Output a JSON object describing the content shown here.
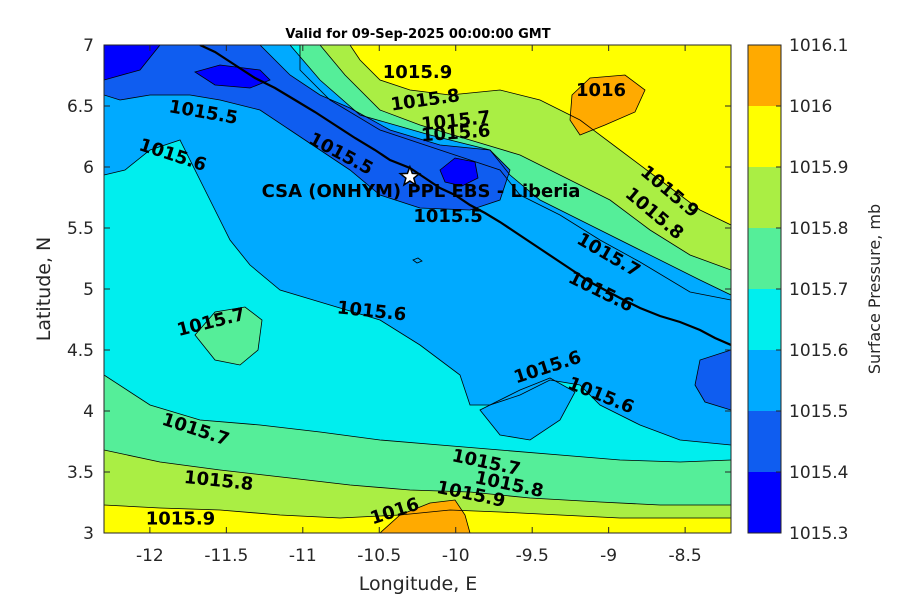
{
  "chart_data": {
    "type": "heatmap",
    "subtype": "filled-contour",
    "title": "Valid for 09-Sep-2025 00:00:00 GMT",
    "xlabel": "Longitude, E",
    "ylabel": "Latitude, N",
    "xlim": [
      -12.3,
      -8.2
    ],
    "ylim": [
      3,
      7
    ],
    "xticks": [
      "-12",
      "-11.5",
      "-11",
      "-10.5",
      "-10",
      "-9.5",
      "-9",
      "-8.5"
    ],
    "xtick_values": [
      -12,
      -11.5,
      -11,
      -10.5,
      -10,
      -9.5,
      -9,
      -8.5
    ],
    "yticks": [
      "3",
      "3.5",
      "4",
      "4.5",
      "5",
      "5.5",
      "6",
      "6.5",
      "7"
    ],
    "ytick_values": [
      3,
      3.5,
      4,
      4.5,
      5,
      5.5,
      6,
      6.5,
      7
    ],
    "colorbar": {
      "label": "Surface Pressure, mb",
      "levels": [
        1015.3,
        1015.4,
        1015.5,
        1015.6,
        1015.7,
        1015.8,
        1015.9,
        1016,
        1016.1
      ],
      "tick_labels": [
        "1015.3",
        "1015.4",
        "1015.5",
        "1015.6",
        "1015.7",
        "1015.8",
        "1015.9",
        "1016",
        "1016.1"
      ],
      "colors": [
        "#0000ff",
        "#0f5df0",
        "#00aaff",
        "#00eeee",
        "#55ee99",
        "#aaee44",
        "#ffff00",
        "#ffaa00",
        "#ff5500"
      ]
    },
    "contour_labels": [
      {
        "text": "1015.9",
        "lon": -10.25,
        "lat": 6.78,
        "angle": 0
      },
      {
        "text": "1016",
        "lon": -9.05,
        "lat": 6.63,
        "angle": 0
      },
      {
        "text": "1015.8",
        "lon": -10.2,
        "lat": 6.55,
        "angle": -8
      },
      {
        "text": "1015.7",
        "lon": -10.0,
        "lat": 6.38,
        "angle": -6
      },
      {
        "text": "1015.6",
        "lon": -10.0,
        "lat": 6.28,
        "angle": -4
      },
      {
        "text": "1015.5",
        "lon": -11.65,
        "lat": 6.45,
        "angle": 10
      },
      {
        "text": "1015.5",
        "lon": -10.75,
        "lat": 6.11,
        "angle": 28
      },
      {
        "text": "1015.6",
        "lon": -11.85,
        "lat": 6.1,
        "angle": 18
      },
      {
        "text": "1015.5",
        "lon": -10.05,
        "lat": 5.6,
        "angle": 0
      },
      {
        "text": "1015.9",
        "lon": -8.6,
        "lat": 5.8,
        "angle": 40
      },
      {
        "text": "1015.8",
        "lon": -8.7,
        "lat": 5.62,
        "angle": 40
      },
      {
        "text": "1015.7",
        "lon": -9.0,
        "lat": 5.28,
        "angle": 30
      },
      {
        "text": "1015.6",
        "lon": -9.05,
        "lat": 4.98,
        "angle": 26
      },
      {
        "text": "1015.6",
        "lon": -10.55,
        "lat": 4.82,
        "angle": 6
      },
      {
        "text": "1015.7",
        "lon": -11.6,
        "lat": 4.73,
        "angle": -14
      },
      {
        "text": "1015.6",
        "lon": -9.4,
        "lat": 4.36,
        "angle": -18
      },
      {
        "text": "1015.6",
        "lon": -9.05,
        "lat": 4.13,
        "angle": 22
      },
      {
        "text": "1015.7",
        "lon": -11.7,
        "lat": 3.85,
        "angle": 18
      },
      {
        "text": "1015.7",
        "lon": -9.8,
        "lat": 3.58,
        "angle": 12
      },
      {
        "text": "1015.8",
        "lon": -9.65,
        "lat": 3.4,
        "angle": 12
      },
      {
        "text": "1015.9",
        "lon": -9.9,
        "lat": 3.32,
        "angle": 12
      },
      {
        "text": "1015.8",
        "lon": -11.55,
        "lat": 3.43,
        "angle": 6
      },
      {
        "text": "1016",
        "lon": -10.4,
        "lat": 3.18,
        "angle": -18
      },
      {
        "text": "1015.9",
        "lon": -11.8,
        "lat": 3.12,
        "angle": 0
      }
    ],
    "station": {
      "name": "CSA (ONHYM) PPL EBS  - Liberia",
      "lon": -10.3,
      "lat": 5.92
    },
    "grid": false
  }
}
